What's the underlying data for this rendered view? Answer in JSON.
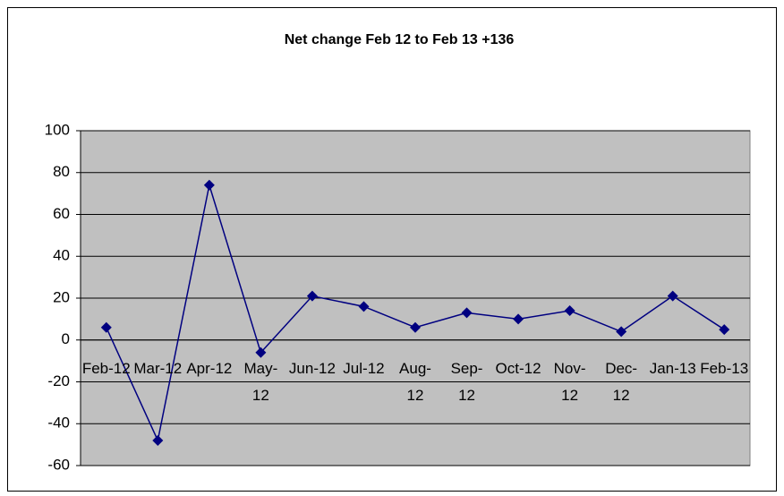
{
  "chart_data": {
    "type": "line",
    "title": "Net change Feb 12 to Feb 13  +136",
    "categories": [
      "Feb-12",
      "Mar-12",
      "Apr-12",
      "May-12",
      "Jun-12",
      "Jul-12",
      "Aug-12",
      "Sep-12",
      "Oct-12",
      "Nov-12",
      "Dec-12",
      "Jan-13",
      "Feb-13"
    ],
    "values": [
      6,
      -48,
      74,
      -6,
      21,
      16,
      6,
      13,
      10,
      14,
      4,
      21,
      5
    ],
    "color": "#000080",
    "ylim": [
      -60,
      100
    ],
    "yticks": [
      -60,
      -40,
      -20,
      0,
      20,
      40,
      60,
      80,
      100
    ],
    "grid": true
  }
}
